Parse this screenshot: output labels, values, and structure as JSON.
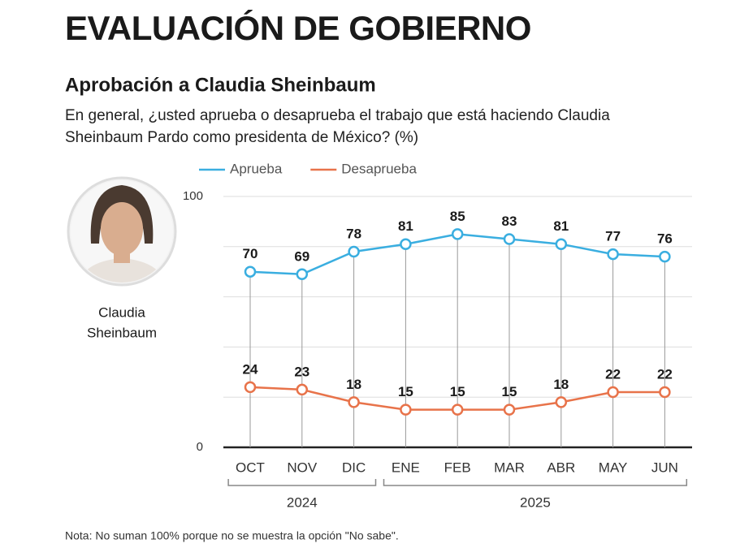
{
  "header": {
    "title": "EVALUACIÓN DE GOBIERNO",
    "subtitle": "Aprobación a Claudia Sheinbaum",
    "question": [
      "En general, ¿usted aprueba o desaprueba el trabajo que está haciendo Claudia",
      "Sheinbaum Pardo como presidenta de México? (%)"
    ]
  },
  "profile": {
    "caption": [
      "Claudia",
      "Sheinbaum"
    ]
  },
  "chart_data": {
    "type": "line",
    "categories": [
      "OCT",
      "NOV",
      "DIC",
      "ENE",
      "FEB",
      "MAR",
      "ABR",
      "MAY",
      "JUN"
    ],
    "x_groups": [
      {
        "label": "2024",
        "categories": [
          "OCT",
          "NOV",
          "DIC"
        ]
      },
      {
        "label": "2025",
        "categories": [
          "ENE",
          "FEB",
          "MAR",
          "ABR",
          "MAY",
          "JUN"
        ]
      }
    ],
    "series": [
      {
        "name": "Aprueba",
        "color": "#3aaee0",
        "values": [
          70,
          69,
          78,
          81,
          85,
          83,
          81,
          77,
          76
        ]
      },
      {
        "name": "Desaprueba",
        "color": "#e8734a",
        "values": [
          24,
          23,
          18,
          15,
          15,
          15,
          18,
          22,
          22
        ]
      }
    ],
    "ylim": [
      0,
      100
    ],
    "yticks": [
      0,
      {
        "value": 20,
        "label": null
      },
      {
        "value": 40,
        "label": null
      },
      {
        "value": 60,
        "label": null
      },
      {
        "value": 80,
        "label": null
      },
      100
    ],
    "grid": true,
    "legend": "top"
  },
  "note": "Nota: No suman 100% porque no se muestra la opción \"No sabe\"."
}
